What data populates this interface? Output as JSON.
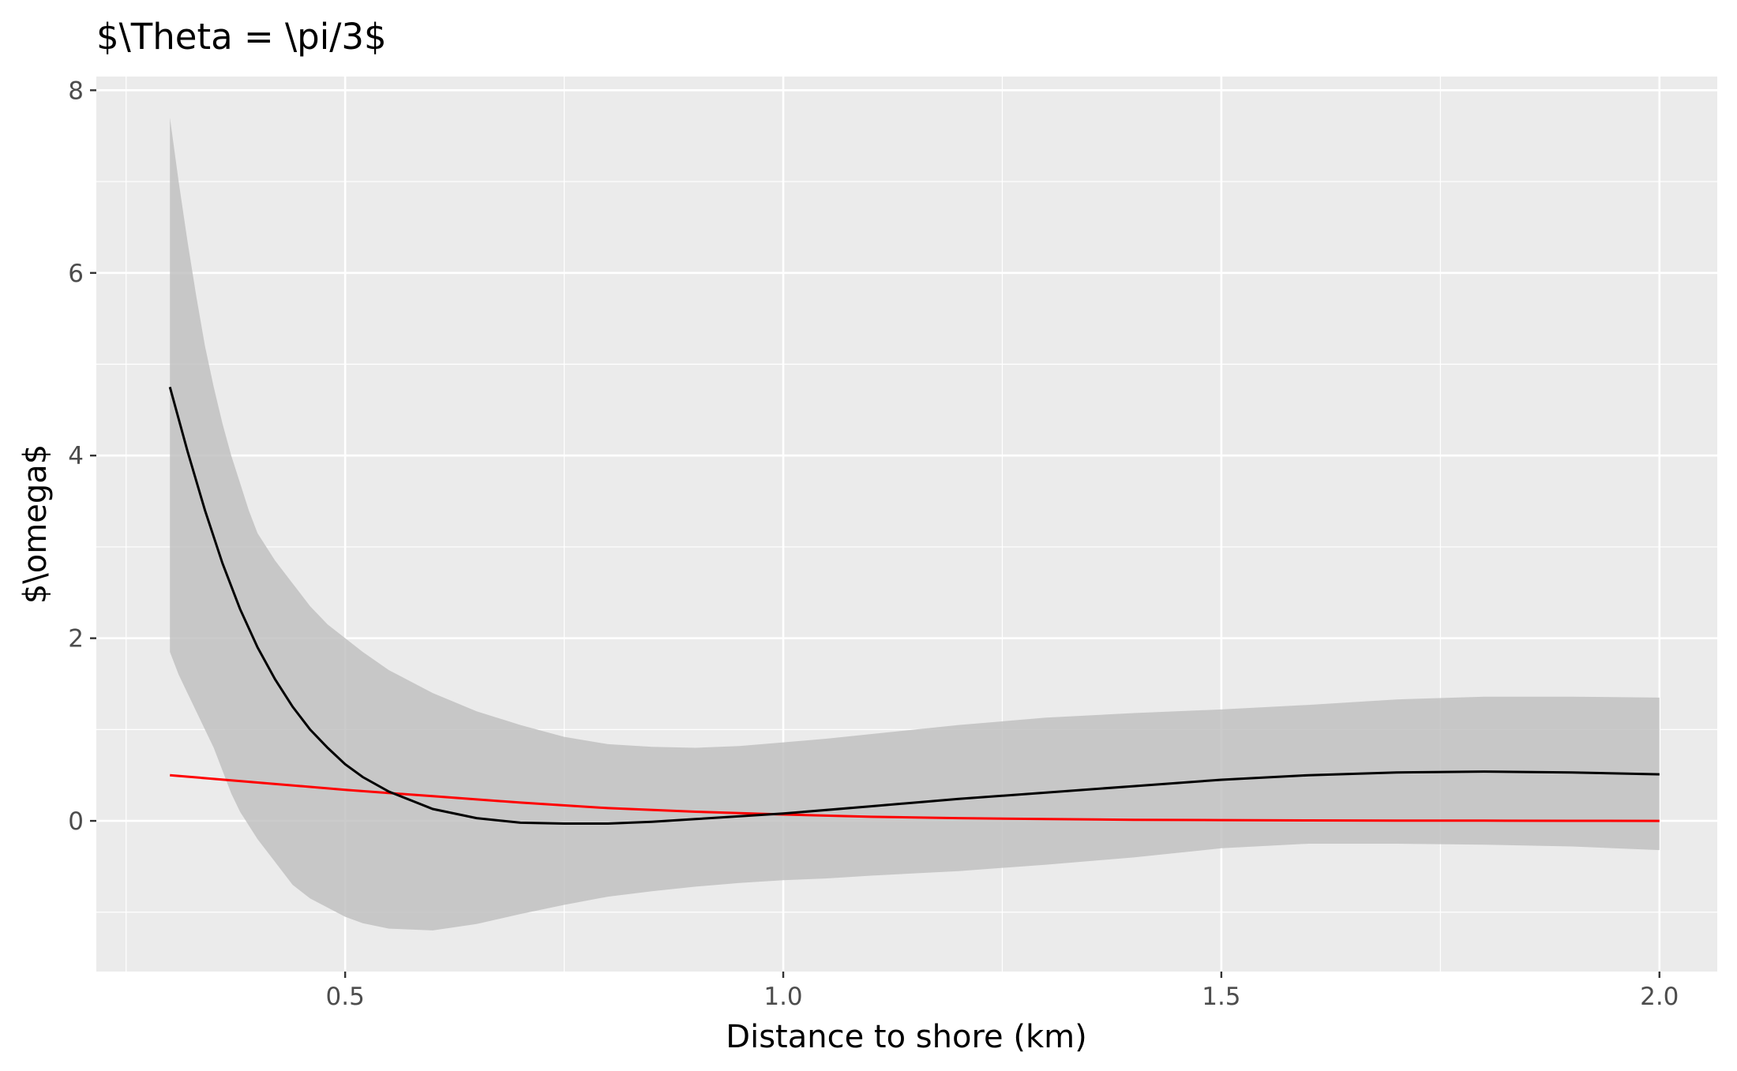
{
  "chart_data": {
    "type": "line",
    "title": "$\\Theta = \\pi/3$",
    "xlabel": "Distance to shore (km)",
    "ylabel": "$\\omega$",
    "xlim": [
      0.216,
      2.066
    ],
    "ylim": [
      -1.65,
      8.15
    ],
    "x_ticks": [
      0.5,
      1.0,
      1.5,
      2.0
    ],
    "x_tick_labels": [
      "0.5",
      "1.0",
      "1.5",
      "2.0"
    ],
    "y_ticks": [
      0,
      2,
      4,
      6,
      8
    ],
    "y_tick_labels": [
      "0",
      "2",
      "4",
      "6",
      "8"
    ],
    "grid": true,
    "legend": "none",
    "colors": {
      "panel": "#EBEBEB",
      "grid": "#FFFFFF",
      "ribbon": "#BEBEBE",
      "fit": "#000000",
      "reference": "#FF0000",
      "tick_text": "#4D4D4D"
    },
    "series": [
      {
        "role": "fit",
        "color": "#000000",
        "x": [
          0.3,
          0.32,
          0.34,
          0.36,
          0.38,
          0.4,
          0.42,
          0.44,
          0.46,
          0.48,
          0.5,
          0.52,
          0.55,
          0.6,
          0.65,
          0.7,
          0.75,
          0.8,
          0.85,
          0.9,
          0.95,
          1.0,
          1.1,
          1.2,
          1.3,
          1.4,
          1.5,
          1.6,
          1.7,
          1.8,
          1.9,
          2.0
        ],
        "y": [
          4.75,
          4.05,
          3.4,
          2.82,
          2.32,
          1.9,
          1.55,
          1.25,
          1.0,
          0.8,
          0.62,
          0.48,
          0.32,
          0.13,
          0.03,
          -0.02,
          -0.03,
          -0.03,
          -0.01,
          0.02,
          0.05,
          0.08,
          0.16,
          0.24,
          0.31,
          0.38,
          0.45,
          0.5,
          0.53,
          0.54,
          0.53,
          0.51
        ]
      },
      {
        "role": "reference",
        "color": "#FF0000",
        "x": [
          0.3,
          0.4,
          0.5,
          0.6,
          0.7,
          0.8,
          0.9,
          1.0,
          1.1,
          1.2,
          1.3,
          1.4,
          1.5,
          1.6,
          1.7,
          1.8,
          1.9,
          2.0
        ],
        "y": [
          0.5,
          0.42,
          0.34,
          0.27,
          0.2,
          0.14,
          0.1,
          0.07,
          0.045,
          0.03,
          0.02,
          0.012,
          0.008,
          0.005,
          0.003,
          0.002,
          0.001,
          0.0
        ]
      }
    ],
    "ribbon": {
      "x": [
        0.3,
        0.31,
        0.32,
        0.33,
        0.34,
        0.35,
        0.36,
        0.37,
        0.38,
        0.39,
        0.4,
        0.42,
        0.44,
        0.46,
        0.48,
        0.5,
        0.52,
        0.55,
        0.6,
        0.65,
        0.7,
        0.75,
        0.8,
        0.85,
        0.9,
        0.95,
        1.0,
        1.05,
        1.1,
        1.2,
        1.3,
        1.4,
        1.5,
        1.6,
        1.7,
        1.8,
        1.9,
        2.0
      ],
      "upper": [
        7.7,
        7.0,
        6.35,
        5.75,
        5.2,
        4.75,
        4.35,
        4.0,
        3.7,
        3.4,
        3.15,
        2.85,
        2.6,
        2.35,
        2.15,
        2.0,
        1.85,
        1.65,
        1.4,
        1.2,
        1.05,
        0.92,
        0.84,
        0.81,
        0.8,
        0.82,
        0.86,
        0.9,
        0.95,
        1.05,
        1.13,
        1.18,
        1.22,
        1.27,
        1.33,
        1.36,
        1.36,
        1.35
      ],
      "lower": [
        1.85,
        1.6,
        1.4,
        1.2,
        1.0,
        0.8,
        0.55,
        0.3,
        0.1,
        -0.05,
        -0.2,
        -0.45,
        -0.7,
        -0.85,
        -0.95,
        -1.05,
        -1.12,
        -1.18,
        -1.2,
        -1.13,
        -1.02,
        -0.92,
        -0.83,
        -0.77,
        -0.72,
        -0.68,
        -0.65,
        -0.63,
        -0.6,
        -0.55,
        -0.48,
        -0.4,
        -0.3,
        -0.25,
        -0.25,
        -0.26,
        -0.28,
        -0.32
      ]
    }
  }
}
